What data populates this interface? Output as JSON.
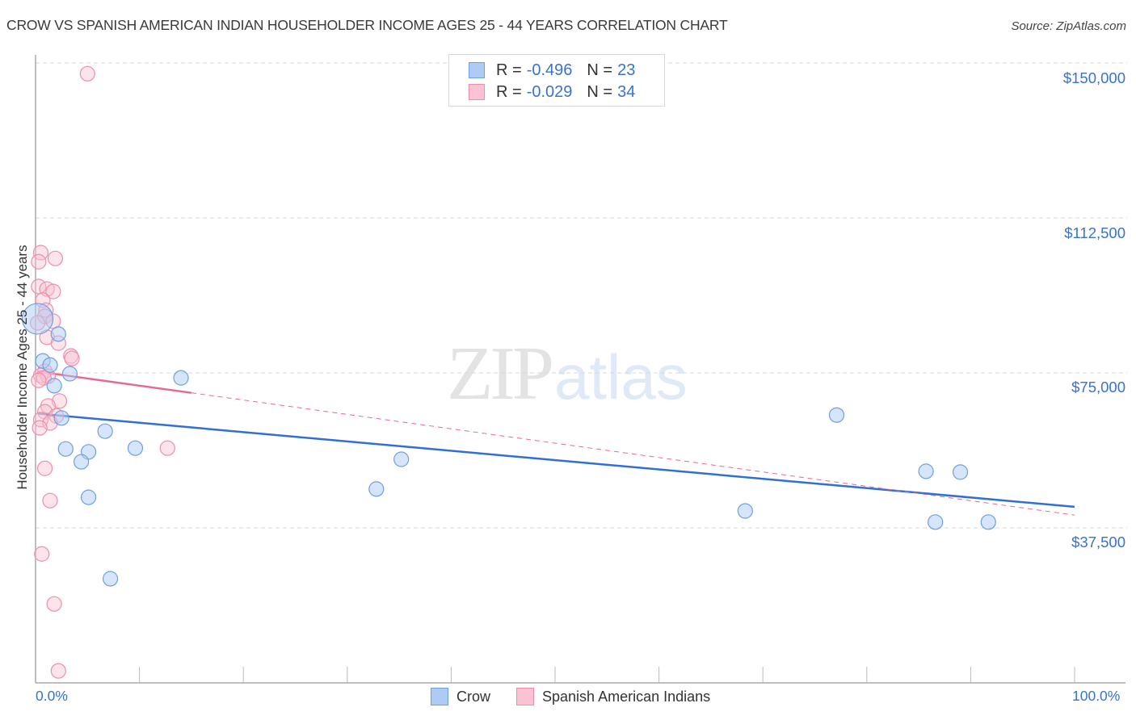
{
  "header": {
    "title": "CROW VS SPANISH AMERICAN INDIAN HOUSEHOLDER INCOME AGES 25 - 44 YEARS CORRELATION CHART",
    "source": "Source: ZipAtlas.com"
  },
  "watermark": {
    "zip": "ZIP",
    "atlas": "atlas"
  },
  "legend": {
    "rows": [
      {
        "r_label": "R =",
        "r_value": "-0.496",
        "n_label": "N =",
        "n_value": "23",
        "color": "#aecbf5",
        "border": "#6f9fe0"
      },
      {
        "r_label": "R =",
        "r_value": "-0.029",
        "n_label": "N =",
        "n_value": "34",
        "color": "#f9c3d3",
        "border": "#ec8fab"
      }
    ],
    "bottom": [
      {
        "label": "Crow",
        "color": "#aecbf5",
        "border": "#6f9fe0"
      },
      {
        "label": "Spanish American Indians",
        "color": "#f9c3d3",
        "border": "#ec8fab"
      }
    ]
  },
  "axes": {
    "ylabel": "Householder Income Ages 25 - 44 years",
    "yticks": [
      "$150,000",
      "$112,500",
      "$75,000",
      "$37,500"
    ],
    "xtick_left": "0.0%",
    "xtick_right": "100.0%"
  },
  "chart_data": {
    "type": "scatter",
    "title": "CROW VS SPANISH AMERICAN INDIAN HOUSEHOLDER INCOME AGES 25 - 44 YEARS CORRELATION CHART",
    "xlabel": "",
    "ylabel": "Householder Income Ages 25 - 44 years",
    "xlim": [
      0,
      100
    ],
    "ylim": [
      0,
      160000
    ],
    "x_unit": "%",
    "y_ticks": [
      37500,
      75000,
      112500,
      150000
    ],
    "grid": "horizontal dashed",
    "legend_position": "top-center and bottom",
    "colors": {
      "Crow": "#6f9fe0",
      "Spanish American Indians": "#ec8fab",
      "crow_trend": "#2f6fd6",
      "sai_trend": "#e8698f"
    },
    "series": [
      {
        "name": "Crow",
        "R": -0.496,
        "N": 23,
        "points": [
          [
            0.2,
            88100
          ],
          [
            2.2,
            84400
          ],
          [
            0.7,
            77900
          ],
          [
            1.4,
            76900
          ],
          [
            3.3,
            74800
          ],
          [
            14.0,
            73800
          ],
          [
            1.8,
            71900
          ],
          [
            2.5,
            64100
          ],
          [
            6.7,
            60900
          ],
          [
            2.9,
            56600
          ],
          [
            9.6,
            56800
          ],
          [
            5.1,
            55900
          ],
          [
            4.4,
            53500
          ],
          [
            35.2,
            54100
          ],
          [
            32.8,
            46900
          ],
          [
            5.1,
            44900
          ],
          [
            77.1,
            64800
          ],
          [
            85.7,
            51200
          ],
          [
            89.0,
            51000
          ],
          [
            68.3,
            41600
          ],
          [
            86.6,
            38900
          ],
          [
            91.7,
            38900
          ],
          [
            7.2,
            25200
          ]
        ],
        "trend": {
          "x": [
            0,
            100
          ],
          "y": [
            65200,
            42600
          ],
          "style": "solid"
        }
      },
      {
        "name": "Spanish American Indians",
        "R": -0.029,
        "N": 34,
        "points": [
          [
            5.0,
            147400
          ],
          [
            0.5,
            104100
          ],
          [
            1.9,
            102700
          ],
          [
            0.3,
            101900
          ],
          [
            0.3,
            95900
          ],
          [
            1.1,
            95300
          ],
          [
            1.7,
            94700
          ],
          [
            0.7,
            92600
          ],
          [
            1.0,
            90200
          ],
          [
            0.9,
            88700
          ],
          [
            0.2,
            87100
          ],
          [
            1.7,
            87500
          ],
          [
            1.1,
            83600
          ],
          [
            2.2,
            82200
          ],
          [
            3.4,
            79100
          ],
          [
            3.5,
            78500
          ],
          [
            0.9,
            75400
          ],
          [
            0.5,
            74400
          ],
          [
            1.2,
            74200
          ],
          [
            0.8,
            73800
          ],
          [
            0.3,
            73200
          ],
          [
            2.3,
            68200
          ],
          [
            1.2,
            67000
          ],
          [
            0.9,
            65600
          ],
          [
            2.0,
            64600
          ],
          [
            0.5,
            63700
          ],
          [
            1.4,
            62900
          ],
          [
            0.4,
            61700
          ],
          [
            12.7,
            56800
          ],
          [
            0.9,
            51900
          ],
          [
            1.4,
            44100
          ],
          [
            0.6,
            31200
          ],
          [
            1.8,
            19100
          ],
          [
            2.2,
            2900
          ]
        ],
        "trend": {
          "x": [
            0,
            100
          ],
          "y": [
            75400,
            40600
          ],
          "style": "solid to ~15%, dashed after"
        }
      }
    ]
  }
}
